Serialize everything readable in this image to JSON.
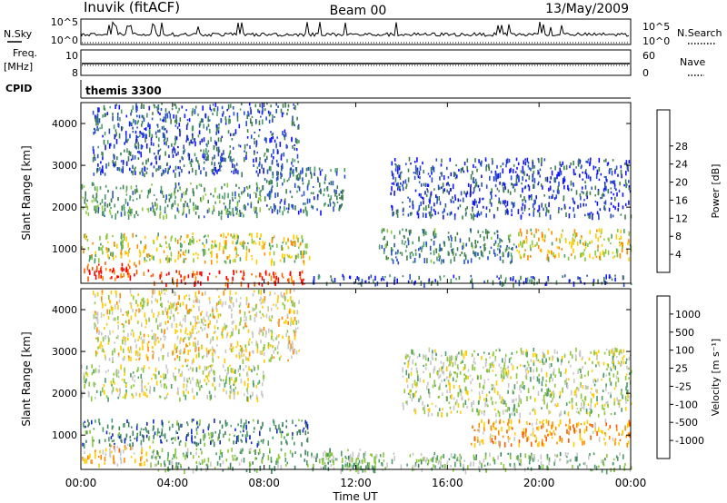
{
  "header": {
    "station": "Inuvik (fitACF)",
    "beam": "Beam 00",
    "date": "13/May/2009"
  },
  "panels": {
    "nsky": {
      "left_label": "N.Sky",
      "left_ticks": [
        "10^5",
        "10^0"
      ],
      "right_ticks": [
        "10^5",
        "10^0"
      ],
      "right_label": "N.Search"
    },
    "freq": {
      "left_label_top": "Freq.",
      "left_label_unit": "[MHz]",
      "left_ticks": [
        "10",
        "8"
      ],
      "right_ticks": [
        "60",
        "0"
      ],
      "right_label": "Nave"
    },
    "cpid": {
      "label": "CPID",
      "program": "themis 3300"
    }
  },
  "chart_data": [
    {
      "type": "heatmap",
      "name": "power",
      "ylabel": "Slant Range [km]",
      "xlabel": "Time UT",
      "x_ticks": [
        "00:00",
        "04:00",
        "08:00",
        "12:00",
        "16:00",
        "20:00",
        "00:00"
      ],
      "x_range_hours": [
        0,
        24
      ],
      "ylim": [
        180,
        4500
      ],
      "y_ticks": [
        1000,
        2000,
        3000,
        4000
      ],
      "colorbar": {
        "label": "Power [dB]",
        "ticks": [
          "4",
          "8",
          "12",
          "16",
          "20",
          "24",
          "28"
        ],
        "colors": [
          "#1414ff",
          "#2850c8",
          "#3f7f4f",
          "#4c9c6c",
          "#8cc83c",
          "#ffcc00",
          "#ff8c00",
          "#ff5a00",
          "#ff0000"
        ]
      },
      "regions": [
        {
          "t0": 0.0,
          "t1": 3.0,
          "r0": 300,
          "r1": 700,
          "level": 0.85
        },
        {
          "t0": 3.0,
          "t1": 9.8,
          "r0": 180,
          "r1": 500,
          "level": 0.9
        },
        {
          "t0": 0.0,
          "t1": 10.0,
          "r0": 700,
          "r1": 1400,
          "level": 0.55
        },
        {
          "t0": 0.0,
          "t1": 8.0,
          "r0": 1800,
          "r1": 2600,
          "level": 0.35
        },
        {
          "t0": 8.0,
          "t1": 11.5,
          "r0": 1900,
          "r1": 3000,
          "level": 0.25
        },
        {
          "t0": 10.0,
          "t1": 24.0,
          "r0": 180,
          "r1": 400,
          "level": 0.2
        },
        {
          "t0": 13.0,
          "t1": 19.0,
          "r0": 700,
          "r1": 1500,
          "level": 0.3
        },
        {
          "t0": 13.5,
          "t1": 24.0,
          "r0": 1800,
          "r1": 3200,
          "level": 0.15
        },
        {
          "t0": 19.0,
          "t1": 24.0,
          "r0": 800,
          "r1": 1500,
          "level": 0.6
        },
        {
          "t0": 0.5,
          "t1": 9.5,
          "r0": 2800,
          "r1": 4500,
          "level": 0.2
        }
      ]
    },
    {
      "type": "heatmap",
      "name": "velocity",
      "ylabel": "Slant Range [km]",
      "xlabel": "Time UT",
      "x_ticks": [
        "00:00",
        "04:00",
        "08:00",
        "12:00",
        "16:00",
        "20:00",
        "00:00"
      ],
      "x_range_hours": [
        0,
        24
      ],
      "ylim": [
        180,
        4500
      ],
      "y_ticks": [
        1000,
        2000,
        3000,
        4000
      ],
      "colorbar": {
        "label": "Velocity [m s⁻¹]",
        "ticks": [
          "1000",
          "500",
          "100",
          "25",
          "-25",
          "-100",
          "-500",
          "-1000"
        ],
        "colors": [
          "#1428c8",
          "#3f7f5f",
          "#4c9c6c",
          "#8cc83c",
          "#c8c8c8",
          "#ffcc00",
          "#ff8c00",
          "#ff5a00",
          "#ff0000"
        ]
      },
      "regions": [
        {
          "t0": 0.0,
          "t1": 3.0,
          "r0": 300,
          "r1": 800,
          "level": 0.62
        },
        {
          "t0": 0.0,
          "t1": 10.0,
          "r0": 800,
          "r1": 1400,
          "level": 0.2
        },
        {
          "t0": 0.0,
          "t1": 8.0,
          "r0": 1900,
          "r1": 2700,
          "level": 0.45
        },
        {
          "t0": 3.0,
          "t1": 13.0,
          "r0": 180,
          "r1": 700,
          "level": 0.35
        },
        {
          "t0": 10.0,
          "t1": 24.0,
          "r0": 180,
          "r1": 600,
          "level": 0.38
        },
        {
          "t0": 14.0,
          "t1": 24.0,
          "r0": 1500,
          "r1": 3100,
          "level": 0.45
        },
        {
          "t0": 17.0,
          "t1": 24.0,
          "r0": 800,
          "r1": 1400,
          "level": 0.7
        },
        {
          "t0": 0.5,
          "t1": 9.5,
          "r0": 2800,
          "r1": 4500,
          "level": 0.55
        }
      ]
    }
  ]
}
